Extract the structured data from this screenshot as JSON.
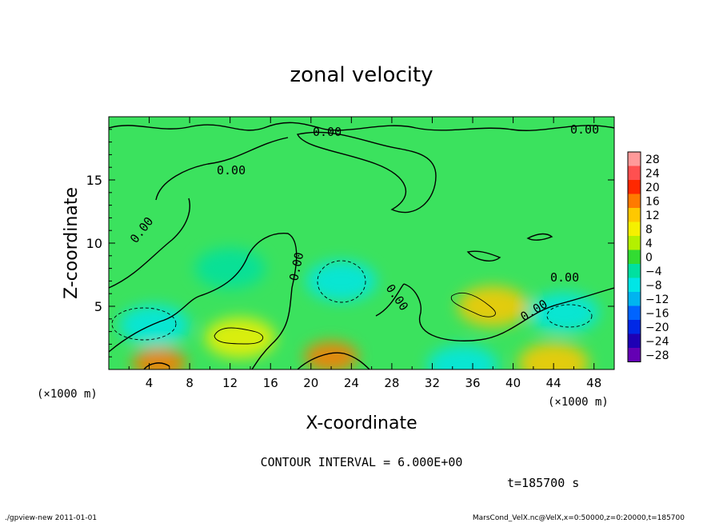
{
  "chart_data": {
    "type": "heatmap",
    "title": "zonal velocity",
    "xlabel": "X-coordinate",
    "ylabel": "Z-coordinate",
    "x_unit": "(×1000 m)",
    "y_unit": "(×1000 m)",
    "xlim": [
      0,
      50
    ],
    "ylim": [
      0,
      20
    ],
    "x_ticks": [
      "4",
      "8",
      "12",
      "16",
      "20",
      "24",
      "28",
      "32",
      "36",
      "40",
      "44",
      "48"
    ],
    "x_tick_values": [
      4,
      8,
      12,
      16,
      20,
      24,
      28,
      32,
      36,
      40,
      44,
      48
    ],
    "y_ticks": [
      "5",
      "10",
      "15"
    ],
    "y_tick_values": [
      5,
      10,
      15
    ],
    "colorbar": {
      "labels": [
        "28",
        "24",
        "20",
        "16",
        "12",
        "8",
        "4",
        "0",
        "−4",
        "−8",
        "−12",
        "−16",
        "−20",
        "−24",
        "−28"
      ],
      "levels": [
        28,
        24,
        20,
        16,
        12,
        8,
        4,
        0,
        -4,
        -8,
        -12,
        -16,
        -20,
        -24,
        -28
      ],
      "colors": [
        "#ff9a9a",
        "#ff5050",
        "#ff2800",
        "#ff7a00",
        "#ffc800",
        "#f5f000",
        "#b4f000",
        "#32dc32",
        "#00e0a0",
        "#00e6e6",
        "#00b4f0",
        "#0064ff",
        "#0028e6",
        "#1e00b4",
        "#6400b4"
      ]
    },
    "contour_labels": [
      "0.00",
      "0.00",
      "0.00",
      "0.00",
      "0.00",
      "0.00",
      "0.00",
      "0.00"
    ],
    "contour_interval_text": "CONTOUR INTERVAL = 6.000E+00",
    "time_text": "t=185700 s",
    "features": [
      {
        "x": 4.5,
        "z": 3.5,
        "value": -9
      },
      {
        "x": 23,
        "z": 7,
        "value": -8
      },
      {
        "x": 45,
        "z": 4.5,
        "value": -8
      },
      {
        "x": 12,
        "z": 8,
        "value": -5
      },
      {
        "x": 38,
        "z": 5,
        "value": 10
      },
      {
        "x": 13,
        "z": 2.5,
        "value": 7
      },
      {
        "x": 22,
        "z": 1,
        "value": 16
      },
      {
        "x": 5,
        "z": 0.5,
        "value": 14
      },
      {
        "x": 44,
        "z": 0.5,
        "value": 12
      },
      {
        "x": 35,
        "z": 0.3,
        "value": -8
      }
    ]
  },
  "footer": {
    "left": "./gpview-new   2011-01-01",
    "right": "MarsCond_VelX.nc@VelX,x=0:50000,z=0:20000,t=185700"
  }
}
